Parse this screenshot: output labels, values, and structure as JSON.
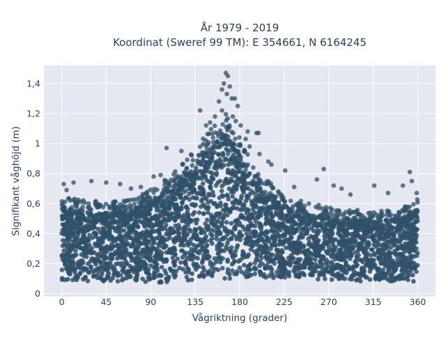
{
  "chart_data": {
    "type": "scatter",
    "title_line1": "År 1979 - 2019",
    "title_line2": "Koordinat (Sweref 99 TM): E 354661, N 6164245",
    "xlabel": "Vågriktning (grader)",
    "ylabel": "Signifikant våghöjd (m)",
    "xlim": [
      -18,
      378
    ],
    "ylim": [
      -0.02,
      1.52
    ],
    "x_ticks": [
      0,
      45,
      90,
      135,
      180,
      225,
      270,
      315,
      360
    ],
    "x_tick_labels": [
      "0",
      "45",
      "90",
      "135",
      "180",
      "225",
      "270",
      "315",
      "360"
    ],
    "y_ticks": [
      0,
      0.2,
      0.4,
      0.6,
      0.8,
      1,
      1.2,
      1.4
    ],
    "y_tick_labels": [
      "0",
      "0,2",
      "0,4",
      "0,6",
      "0,8",
      "1",
      "1,2",
      "1,4"
    ],
    "grid": true,
    "marker_color": "#2f5068",
    "plot_background": "#e5e8f0",
    "envelope": {
      "description_direction_deg": [
        0,
        20,
        45,
        70,
        90,
        110,
        135,
        150,
        165,
        180,
        195,
        225,
        270,
        315,
        345,
        360
      ],
      "typical_max_height_m": [
        0.62,
        0.6,
        0.58,
        0.6,
        0.66,
        0.75,
        0.92,
        1.05,
        1.15,
        1.0,
        0.8,
        0.62,
        0.55,
        0.52,
        0.55,
        0.6
      ],
      "min_height_m": [
        0.08,
        0.08,
        0.08,
        0.08,
        0.07,
        0.08,
        0.09,
        0.1,
        0.1,
        0.1,
        0.1,
        0.1,
        0.09,
        0.08,
        0.08,
        0.08
      ]
    },
    "outliers": [
      {
        "x": 166,
        "y": 1.47
      },
      {
        "x": 168,
        "y": 1.45
      },
      {
        "x": 164,
        "y": 1.4
      },
      {
        "x": 170,
        "y": 1.38
      },
      {
        "x": 162,
        "y": 1.36
      },
      {
        "x": 167,
        "y": 1.33
      },
      {
        "x": 175,
        "y": 1.3
      },
      {
        "x": 172,
        "y": 1.3
      },
      {
        "x": 159,
        "y": 1.28
      },
      {
        "x": 178,
        "y": 1.25
      },
      {
        "x": 140,
        "y": 1.22
      },
      {
        "x": 162,
        "y": 1.22
      },
      {
        "x": 155,
        "y": 1.18
      },
      {
        "x": 173,
        "y": 1.18
      },
      {
        "x": 176,
        "y": 1.15
      },
      {
        "x": 146,
        "y": 1.12
      },
      {
        "x": 150,
        "y": 1.14
      },
      {
        "x": 181,
        "y": 1.12
      },
      {
        "x": 188,
        "y": 1.08
      },
      {
        "x": 197,
        "y": 1.07
      },
      {
        "x": 199,
        "y": 1.07
      },
      {
        "x": 186,
        "y": 1.03
      },
      {
        "x": 190,
        "y": 0.98
      },
      {
        "x": 106,
        "y": 0.97
      },
      {
        "x": 121,
        "y": 0.95
      },
      {
        "x": 200,
        "y": 0.93
      },
      {
        "x": 209,
        "y": 0.88
      },
      {
        "x": 212,
        "y": 0.86
      },
      {
        "x": 226,
        "y": 0.82
      },
      {
        "x": 265,
        "y": 0.83
      },
      {
        "x": 352,
        "y": 0.81
      },
      {
        "x": 100,
        "y": 0.79
      },
      {
        "x": 93,
        "y": 0.78
      },
      {
        "x": 258,
        "y": 0.76
      },
      {
        "x": 354,
        "y": 0.75
      },
      {
        "x": 30,
        "y": 0.75
      },
      {
        "x": 45,
        "y": 0.74
      },
      {
        "x": 12,
        "y": 0.74
      },
      {
        "x": 2,
        "y": 0.73
      },
      {
        "x": 59,
        "y": 0.73
      },
      {
        "x": 275,
        "y": 0.72
      },
      {
        "x": 316,
        "y": 0.72
      },
      {
        "x": 235,
        "y": 0.71
      },
      {
        "x": 283,
        "y": 0.7
      },
      {
        "x": 345,
        "y": 0.72
      },
      {
        "x": 330,
        "y": 0.67
      },
      {
        "x": 292,
        "y": 0.66
      },
      {
        "x": 5,
        "y": 0.69
      },
      {
        "x": 70,
        "y": 0.7
      },
      {
        "x": 80,
        "y": 0.71
      },
      {
        "x": 359,
        "y": 0.67
      }
    ]
  }
}
